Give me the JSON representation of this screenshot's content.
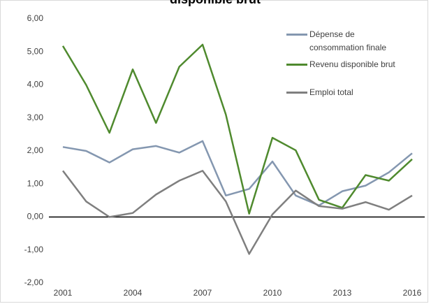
{
  "chart_data": {
    "type": "line",
    "title": "disponible brut",
    "x": [
      2001,
      2002,
      2003,
      2004,
      2005,
      2006,
      2007,
      2008,
      2009,
      2010,
      2011,
      2012,
      2013,
      2014,
      2015,
      2016
    ],
    "xlim": [
      2001,
      2016
    ],
    "xticks": [
      2001,
      2004,
      2007,
      2010,
      2013,
      2016
    ],
    "ylim": [
      -2,
      6
    ],
    "yticks": [
      {
        "value": -2,
        "label": "-2,00"
      },
      {
        "value": -1,
        "label": "-1,00"
      },
      {
        "value": 0,
        "label": "0,00"
      },
      {
        "value": 1,
        "label": "1,00"
      },
      {
        "value": 2,
        "label": "2,00"
      },
      {
        "value": 3,
        "label": "3,00"
      },
      {
        "value": 4,
        "label": "4,00"
      },
      {
        "value": 5,
        "label": "5,00"
      },
      {
        "value": 6,
        "label": "6,00"
      }
    ],
    "grid": false,
    "series": [
      {
        "name": "Dépense de consommation finale",
        "color": "#8497b0",
        "values": [
          2.12,
          2.0,
          1.65,
          2.05,
          2.15,
          1.95,
          2.3,
          0.65,
          0.85,
          1.68,
          0.65,
          0.35,
          0.78,
          0.95,
          1.35,
          1.93
        ]
      },
      {
        "name": "Revenu disponible brut",
        "color": "#4f8a2e",
        "values": [
          5.18,
          4.0,
          2.55,
          4.47,
          2.85,
          4.55,
          5.22,
          3.1,
          0.1,
          2.4,
          2.02,
          0.52,
          0.28,
          1.27,
          1.1,
          1.75
        ]
      },
      {
        "name": "Emploi total",
        "color": "#7f7f7f",
        "values": [
          1.4,
          0.47,
          0.0,
          0.12,
          0.68,
          1.1,
          1.4,
          0.47,
          -1.12,
          0.08,
          0.8,
          0.33,
          0.25,
          0.45,
          0.22,
          0.65
        ]
      }
    ]
  }
}
